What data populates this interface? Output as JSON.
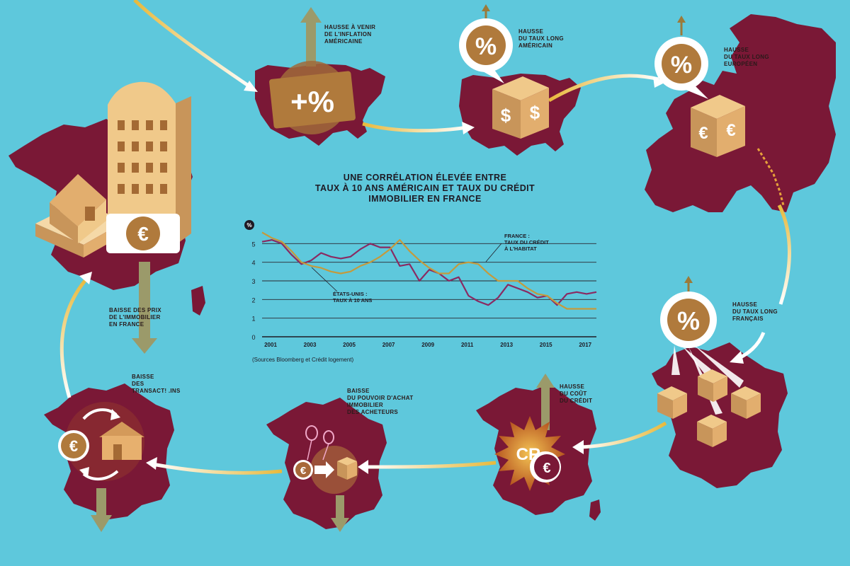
{
  "labels": {
    "us_inflation": "HAUSSE À VENIR\nDE L'INFLATION\nAMÉRICAINE",
    "us_rate": "HAUSSE\nDU TAUX LONG\nAMÉRICAIN",
    "eu_rate": "HAUSSE\nDU TAUX LONG\nEUROPÉEN",
    "fr_rate": "HAUSSE\nDU TAUX LONG\nFRANÇAIS",
    "credit_cost": "HAUSSE\nDU COÛT\nDU CRÉDIT",
    "purchasing_power": "BAISSE\nDU POUVOIR D'ACHAT\nIMMOBILIER\nDES ACHETEURS",
    "transactions": "BAISSE\nDES\nTRANSACT! .INS",
    "prices": "BAISSE DES PRIX\nDE L'IMMOBILIER\nEN FRANCE"
  },
  "icons": {
    "plus_percent": "+%",
    "percent": "%",
    "dollar": "$",
    "euro": "€",
    "credit": "CR"
  },
  "colors": {
    "background": "#5ec8dc",
    "map": "#7a1836",
    "gold": "#b98a3a",
    "arrow_olive": "#9b9a6a",
    "us_line": "#8a2a62",
    "fr_line": "#c49a3c"
  },
  "chart_data": {
    "type": "line",
    "title": "UNE CORRÉLATION ÉLEVÉE ENTRE\nTAUX À 10 ANS AMÉRICAIN ET TAUX DU CRÉDIT\nIMMOBILIER EN FRANCE",
    "ylabel": "%",
    "ylim": [
      0,
      6
    ],
    "yticks": [
      0,
      1,
      2,
      3,
      4,
      5
    ],
    "xlim": [
      2001,
      2018
    ],
    "xticks": [
      "2001",
      "2003",
      "2005",
      "2007",
      "2009",
      "2011",
      "2013",
      "2015",
      "2017"
    ],
    "grid": true,
    "source": "(Sources Bloomberg et Crédit logement)",
    "series": [
      {
        "name": "ÉTATS-UNIS : TAUX À 10 ANS",
        "x": [
          2001,
          2001.5,
          2002,
          2002.5,
          2003,
          2003.5,
          2004,
          2004.5,
          2005,
          2005.5,
          2006,
          2006.5,
          2007,
          2007.5,
          2008,
          2008.5,
          2009,
          2009.5,
          2010,
          2010.5,
          2011,
          2011.5,
          2012,
          2012.5,
          2013,
          2013.5,
          2014,
          2014.5,
          2015,
          2015.5,
          2016,
          2016.5,
          2017,
          2017.5,
          2018
        ],
        "values": [
          5.1,
          5.2,
          5.0,
          4.4,
          3.9,
          4.1,
          4.5,
          4.3,
          4.2,
          4.3,
          4.7,
          5.0,
          4.8,
          4.8,
          3.8,
          3.9,
          3.0,
          3.6,
          3.4,
          3.0,
          3.2,
          2.2,
          1.9,
          1.7,
          2.1,
          2.8,
          2.6,
          2.4,
          2.1,
          2.2,
          1.7,
          2.3,
          2.4,
          2.3,
          2.4
        ]
      },
      {
        "name": "FRANCE : TAUX DU CRÉDIT À L'HABITAT",
        "x": [
          2001,
          2001.5,
          2002,
          2002.5,
          2003,
          2003.5,
          2004,
          2004.5,
          2005,
          2005.5,
          2006,
          2006.5,
          2007,
          2007.5,
          2008,
          2008.5,
          2009,
          2009.5,
          2010,
          2010.5,
          2011,
          2011.5,
          2012,
          2012.5,
          2013,
          2013.5,
          2014,
          2014.5,
          2015,
          2015.5,
          2016,
          2016.5,
          2017,
          2017.5,
          2018
        ],
        "values": [
          5.6,
          5.3,
          5.1,
          4.6,
          4.0,
          3.8,
          3.7,
          3.5,
          3.4,
          3.5,
          3.8,
          4.0,
          4.3,
          4.7,
          5.2,
          4.6,
          4.1,
          3.7,
          3.4,
          3.4,
          3.9,
          4.0,
          3.9,
          3.4,
          3.0,
          3.0,
          3.0,
          2.6,
          2.3,
          2.2,
          1.8,
          1.5,
          1.5,
          1.5,
          1.5
        ]
      }
    ],
    "annotations": {
      "us": "ÉTATS-UNIS :\nTAUX À 10 ANS",
      "fr": "FRANCE :\nTAUX DU CRÉDIT\nÀ L'HABITAT"
    }
  }
}
